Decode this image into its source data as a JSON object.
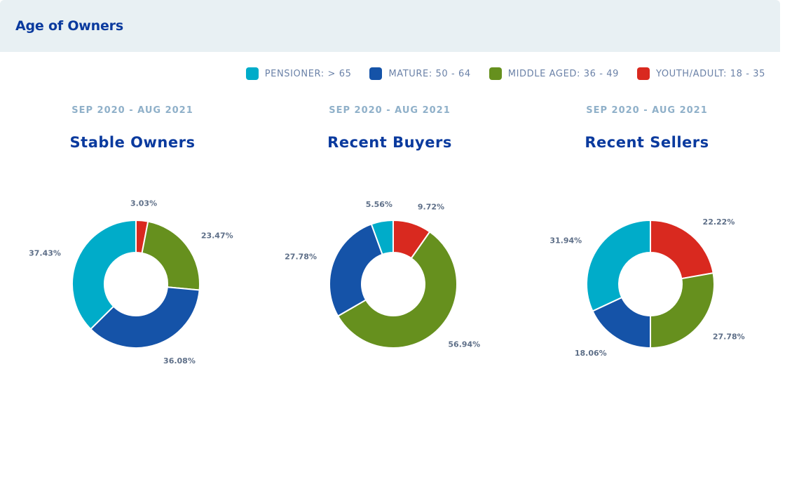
{
  "header": {
    "title": "Age of Owners"
  },
  "legend": [
    {
      "label": "PENSIONER: > 65",
      "color": "#00acc9"
    },
    {
      "label": "MATURE: 50 - 64",
      "color": "#1553a8"
    },
    {
      "label": "MIDDLE AGED: 36 - 49",
      "color": "#66901e"
    },
    {
      "label": "YOUTH/ADULT: 18 - 35",
      "color": "#d9291f"
    }
  ],
  "chart_data": [
    {
      "type": "pie",
      "subtitle": "SEP 2020 - AUG 2021",
      "title": "Stable Owners",
      "series": [
        {
          "name": "YOUTH/ADULT: 18 - 35",
          "value": 3.03,
          "label": "3.03%"
        },
        {
          "name": "MIDDLE AGED: 36 - 49",
          "value": 23.47,
          "label": "23.47%"
        },
        {
          "name": "MATURE: 50 - 64",
          "value": 36.08,
          "label": "36.08%"
        },
        {
          "name": "PENSIONER: > 65",
          "value": 37.43,
          "label": "37.43%"
        }
      ]
    },
    {
      "type": "pie",
      "subtitle": "SEP 2020 - AUG 2021",
      "title": "Recent Buyers",
      "series": [
        {
          "name": "YOUTH/ADULT: 18 - 35",
          "value": 9.72,
          "label": "9.72%"
        },
        {
          "name": "MIDDLE AGED: 36 - 49",
          "value": 56.94,
          "label": "56.94%"
        },
        {
          "name": "MATURE: 50 - 64",
          "value": 27.78,
          "label": "27.78%"
        },
        {
          "name": "PENSIONER: > 65",
          "value": 5.56,
          "label": "5.56%"
        }
      ]
    },
    {
      "type": "pie",
      "subtitle": "SEP 2020 - AUG 2021",
      "title": "Recent Sellers",
      "series": [
        {
          "name": "YOUTH/ADULT: 18 - 35",
          "value": 22.22,
          "label": "22.22%"
        },
        {
          "name": "MIDDLE AGED: 36 - 49",
          "value": 27.78,
          "label": "27.78%"
        },
        {
          "name": "MATURE: 50 - 64",
          "value": 18.06,
          "label": "18.06%"
        },
        {
          "name": "PENSIONER: > 65",
          "value": 31.94,
          "label": "31.94%"
        }
      ]
    }
  ]
}
